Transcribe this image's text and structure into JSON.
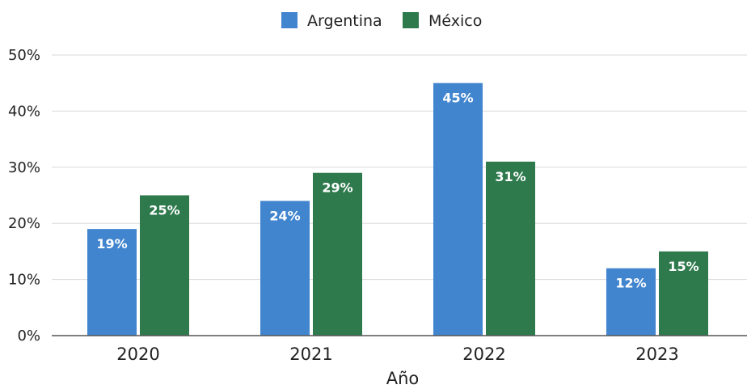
{
  "chart_data": {
    "type": "bar",
    "title": "",
    "xlabel": "Año",
    "ylabel": "",
    "categories": [
      "2020",
      "2021",
      "2022",
      "2023"
    ],
    "series": [
      {
        "name": "Argentina",
        "values": [
          19,
          24,
          45,
          12
        ],
        "labels": [
          "19%",
          "24%",
          "45%",
          "12%"
        ]
      },
      {
        "name": "México",
        "values": [
          25,
          29,
          31,
          15
        ],
        "labels": [
          "25%",
          "29%",
          "31%",
          "15%"
        ]
      }
    ],
    "ylim": [
      0,
      50
    ],
    "yticks": [
      0,
      10,
      20,
      30,
      40,
      50
    ],
    "ytick_labels": [
      "0%",
      "10%",
      "20%",
      "30%",
      "40%",
      "50%"
    ],
    "grid": true,
    "legend_position": "top-center",
    "colors": {
      "Argentina": "#4185cf",
      "México": "#2f7a4d",
      "grid": "#d9d9d9",
      "axis": "#555555"
    }
  }
}
